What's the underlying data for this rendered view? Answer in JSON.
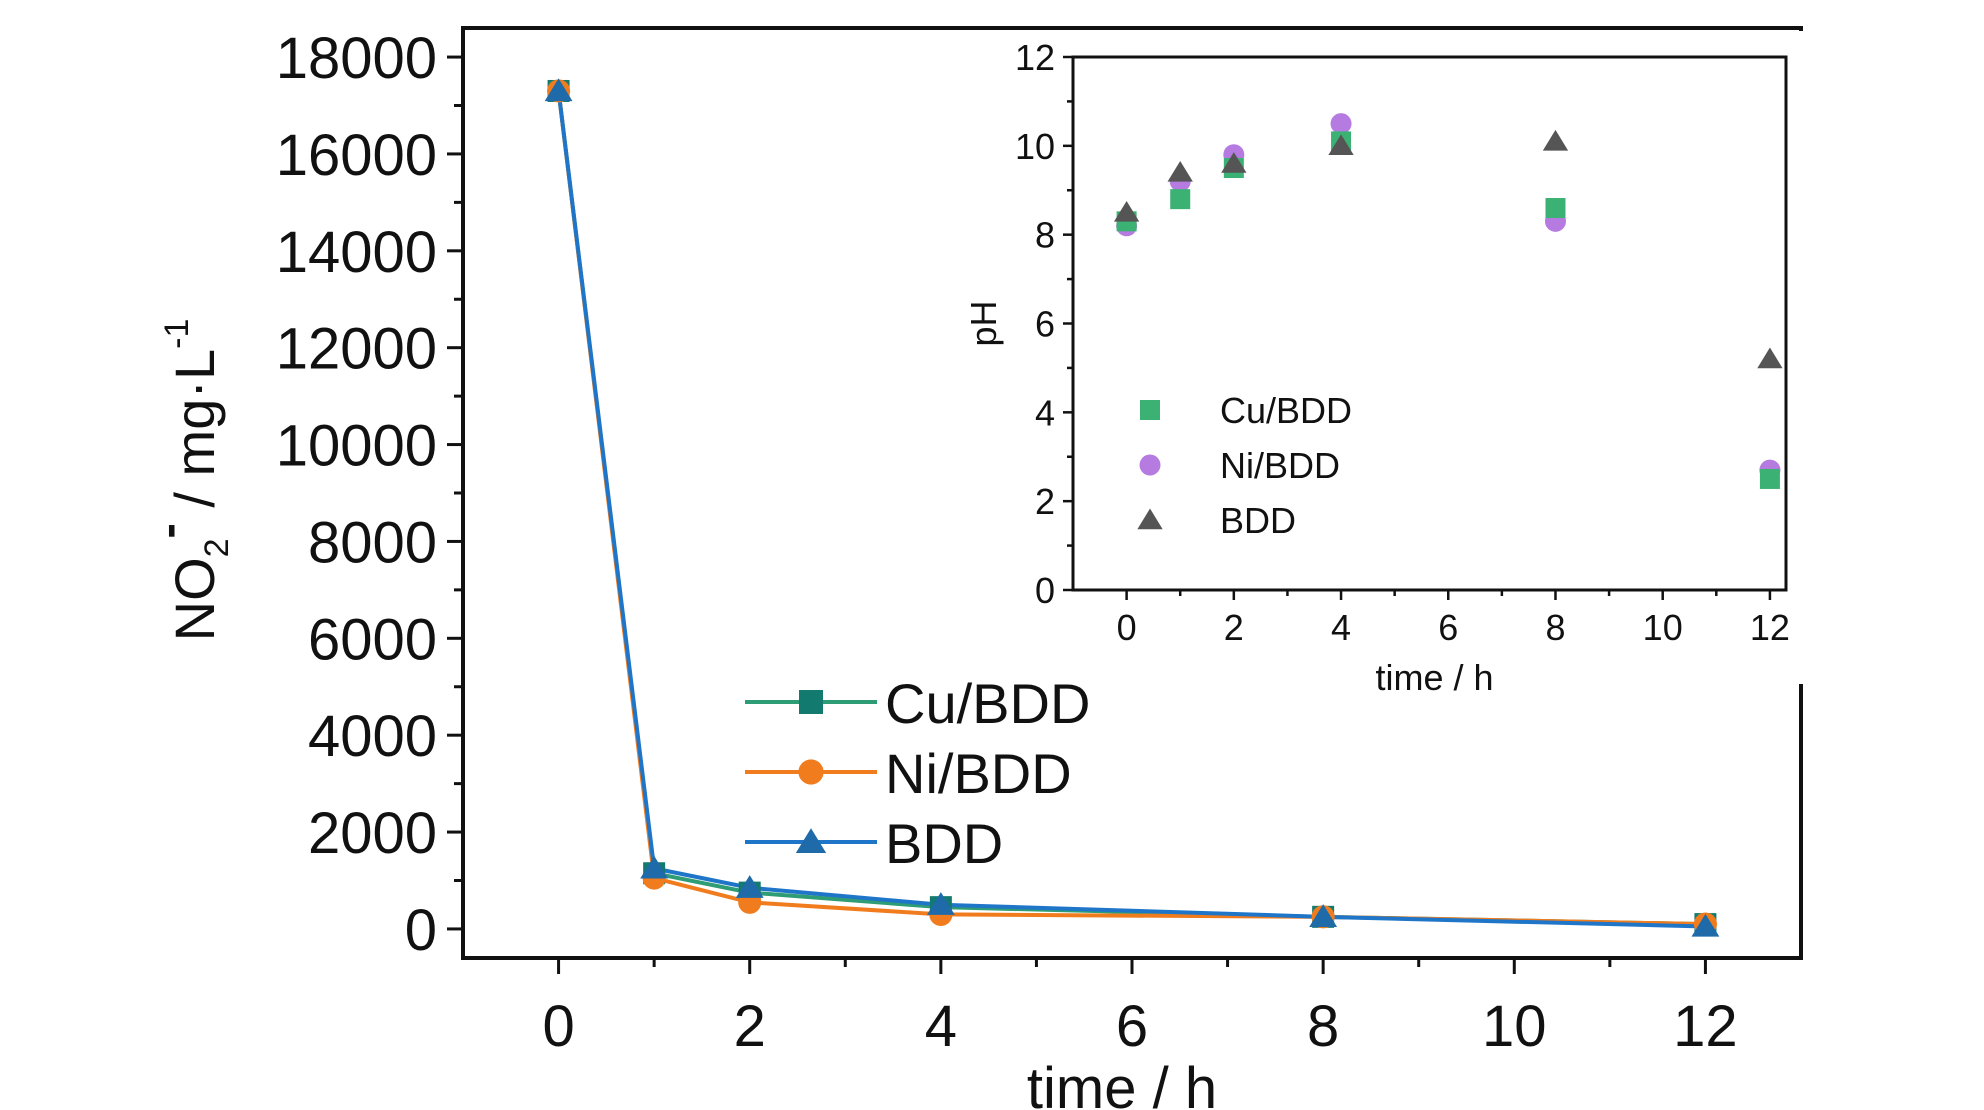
{
  "chart_data": [
    {
      "type": "line",
      "title": "",
      "xlabel": "time / h",
      "ylabel_parts": {
        "base": "NO",
        "sub": "2",
        "sup_charge": "-",
        "rest": " / mg·L",
        "sup_unit": "-1"
      },
      "xlim": [
        -1,
        13
      ],
      "ylim": [
        -600,
        18600
      ],
      "xticks": [
        0,
        2,
        4,
        6,
        8,
        10,
        12
      ],
      "yticks": [
        0,
        2000,
        4000,
        6000,
        8000,
        10000,
        12000,
        14000,
        16000,
        18000
      ],
      "x": [
        0,
        1,
        2,
        4,
        8,
        12
      ],
      "series": [
        {
          "name": "Cu/BDD",
          "marker": "square",
          "color": "#2e9c74",
          "markerColor": "#127a6e",
          "values": [
            17300,
            1150,
            750,
            450,
            250,
            100
          ]
        },
        {
          "name": "Ni/BDD",
          "marker": "circle",
          "color": "#f07c1e",
          "markerColor": "#f07c1e",
          "values": [
            17300,
            1050,
            550,
            300,
            250,
            100
          ]
        },
        {
          "name": "BDD",
          "marker": "triangle",
          "color": "#1f76c8",
          "markerColor": "#1f6aa8",
          "values": [
            17300,
            1250,
            850,
            500,
            250,
            50
          ]
        }
      ],
      "legend": "bottom-center"
    },
    {
      "type": "scatter",
      "title": "",
      "xlabel": "time / h",
      "ylabel": "pH",
      "xlim": [
        -1,
        12.3
      ],
      "ylim": [
        0,
        12
      ],
      "xticks": [
        0,
        2,
        4,
        6,
        8,
        10,
        12
      ],
      "yticks": [
        0,
        2,
        4,
        6,
        8,
        10,
        12
      ],
      "x": [
        0,
        1,
        2,
        4,
        8,
        12
      ],
      "series": [
        {
          "name": "Cu/BDD",
          "marker": "square",
          "color": "#3bb273",
          "values": [
            8.3,
            8.8,
            9.5,
            10.1,
            8.6,
            2.5
          ]
        },
        {
          "name": "Ni/BDD",
          "marker": "circle",
          "color": "#b57be0",
          "values": [
            8.2,
            9.2,
            9.8,
            10.5,
            8.3,
            2.7
          ]
        },
        {
          "name": "BDD",
          "marker": "triangle",
          "color": "#555555",
          "values": [
            8.5,
            9.4,
            9.6,
            10.0,
            10.1,
            5.2
          ]
        }
      ],
      "legend": "left"
    }
  ]
}
